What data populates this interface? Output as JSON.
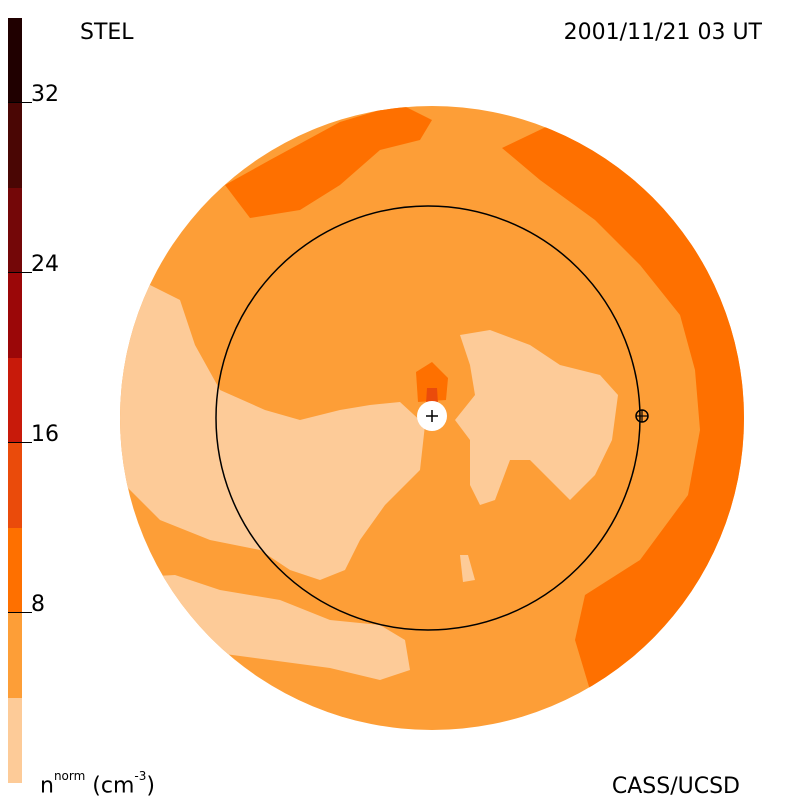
{
  "header": {
    "station": "STEL",
    "datetime": "2001/11/21 03 UT"
  },
  "footer": {
    "credit": "CASS/UCSD",
    "unit_base": "n",
    "unit_sup": "norm",
    "unit_rest": " (cm",
    "unit_exp": "-3",
    "unit_close": ")"
  },
  "colorbar": {
    "levels": [
      0,
      4,
      8,
      12,
      16,
      20,
      24,
      28,
      32,
      36
    ],
    "colors": [
      "#fdcb98",
      "#fd9e37",
      "#fe7000",
      "#ea4b0b",
      "#c81a0a",
      "#9b0708",
      "#740708",
      "#4a0604",
      "#200000"
    ],
    "tick_labels": [
      "8",
      "16",
      "24",
      "32"
    ]
  },
  "map": {
    "background_color": "#fd9e37",
    "light_color": "#fdcb98",
    "dark_color": "#fe7000",
    "peak_color": "#ea4b0b"
  }
}
